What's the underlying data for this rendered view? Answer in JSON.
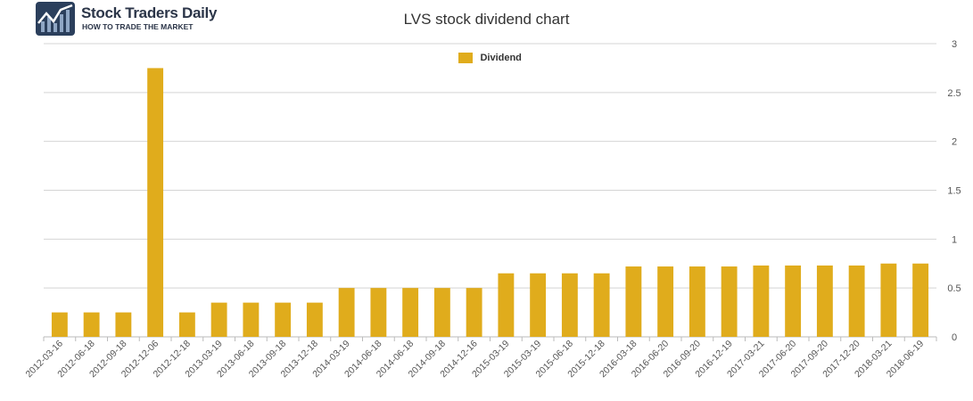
{
  "brand": {
    "name": "Stock Traders Daily",
    "tagline": "HOW TO TRADE THE MARKET",
    "logo_icon": "chart-trend-icon"
  },
  "colors": {
    "bar": "#e0ac1c",
    "grid": "#d4d4d4",
    "text": "#555555",
    "logo_bg": "#2b3f5c"
  },
  "chart_data": {
    "type": "bar",
    "title": "LVS stock dividend chart",
    "xlabel": "",
    "ylabel": "",
    "ylim": [
      0,
      3
    ],
    "yticks": [
      0,
      0.5,
      1,
      1.5,
      2,
      2.5,
      3
    ],
    "ytick_labels": [
      "0",
      "0.5",
      "1",
      "1.5",
      "2",
      "2.5",
      "3"
    ],
    "y_axis_side": "right",
    "grid": true,
    "legend_position": "top-center",
    "categories": [
      "2012-03-16",
      "2012-06-18",
      "2012-09-18",
      "2012-12-06",
      "2012-12-18",
      "2013-03-19",
      "2013-06-18",
      "2013-09-18",
      "2013-12-18",
      "2014-03-19",
      "2014-06-18",
      "2014-06-18",
      "2014-09-18",
      "2014-12-16",
      "2015-03-19",
      "2015-03-19",
      "2015-06-18",
      "2015-12-18",
      "2016-03-18",
      "2016-06-20",
      "2016-09-20",
      "2016-12-19",
      "2017-03-21",
      "2017-06-20",
      "2017-09-20",
      "2017-12-20",
      "2018-03-21",
      "2018-06-19"
    ],
    "series": [
      {
        "name": "Dividend",
        "values": [
          0.25,
          0.25,
          0.25,
          2.75,
          0.25,
          0.35,
          0.35,
          0.35,
          0.35,
          0.5,
          0.5,
          0.5,
          0.5,
          0.5,
          0.65,
          0.65,
          0.65,
          0.65,
          0.72,
          0.72,
          0.72,
          0.72,
          0.73,
          0.73,
          0.73,
          0.73,
          0.75,
          0.75
        ]
      }
    ]
  }
}
